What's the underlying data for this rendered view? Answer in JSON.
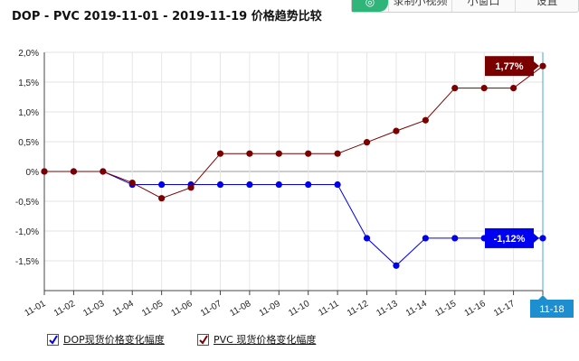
{
  "title": "DOP - PVC 2019-11-01 - 2019-11-19 价格趋势比较",
  "toolbar": {
    "record_label": "录制小视频",
    "window_label": "小窗口",
    "settings_label": "设置"
  },
  "chart_data": {
    "type": "line",
    "title": "DOP - PVC 2019-11-01 - 2019-11-19 价格趋势比较",
    "categories": [
      "11-01",
      "11-02",
      "11-03",
      "11-04",
      "11-05",
      "11-06",
      "11-07",
      "11-08",
      "11-09",
      "11-10",
      "11-11",
      "11-12",
      "11-13",
      "11-14",
      "11-15",
      "11-16",
      "11-17",
      "11-18"
    ],
    "ylim": [
      -2.0,
      2.0
    ],
    "yticks": [
      "2,0%",
      "1,5%",
      "1,0%",
      "0,5%",
      "0%",
      "-0,5%",
      "-1,0%",
      "-1,5%"
    ],
    "grid": true,
    "legend_position": "bottom-left",
    "highlight_label": "11-18",
    "series": [
      {
        "name": "DOP现货价格变化幅度",
        "color": "#0000ee",
        "end_label": "-1,12%",
        "values": [
          0,
          0,
          0,
          -0.22,
          -0.22,
          -0.22,
          -0.22,
          -0.22,
          -0.22,
          -0.22,
          -0.22,
          -1.12,
          -1.58,
          -1.12,
          -1.12,
          -1.12,
          -1.12,
          -1.12
        ]
      },
      {
        "name": "PVC 现货价格变化幅度",
        "color": "#7a0000",
        "end_label": "1,77%",
        "values": [
          0,
          0,
          0,
          -0.19,
          -0.45,
          -0.27,
          0.3,
          0.3,
          0.3,
          0.3,
          0.3,
          0.49,
          0.68,
          0.86,
          1.4,
          1.4,
          1.4,
          1.77
        ]
      }
    ]
  }
}
